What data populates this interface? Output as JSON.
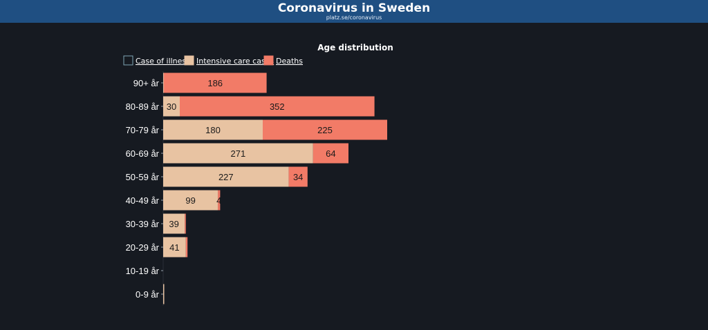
{
  "header": {
    "title": "Coronavirus in Sweden",
    "subtitle": "platz.se/coronavirus"
  },
  "colors": {
    "header_bg": "#1f4f82",
    "page_bg": "#161a21",
    "case_of_illness": "#161a21",
    "case_of_illness_border": "#7fa6b5",
    "intensive_care": "#e8c3a2",
    "deaths": "#f27b67"
  },
  "chart_data": {
    "type": "bar",
    "orientation": "horizontal",
    "stacked": true,
    "title": "Age distribution",
    "categories": [
      "90+ år",
      "80-89 år",
      "70-79 år",
      "60-69 år",
      "50-59 år",
      "40-49 år",
      "30-39 år",
      "20-29 år",
      "10-19 år",
      "0-9 år"
    ],
    "series": [
      {
        "name": "Case of illness",
        "values": [
          0,
          0,
          0,
          0,
          0,
          0,
          0,
          0,
          0,
          0
        ]
      },
      {
        "name": "Intensive care cases",
        "values": [
          1,
          30,
          180,
          271,
          227,
          99,
          39,
          41,
          0,
          1
        ]
      },
      {
        "name": "Deaths",
        "values": [
          186,
          352,
          225,
          64,
          34,
          4,
          2,
          3,
          0,
          0
        ]
      }
    ],
    "legend_position": "top-left",
    "grid": false
  }
}
